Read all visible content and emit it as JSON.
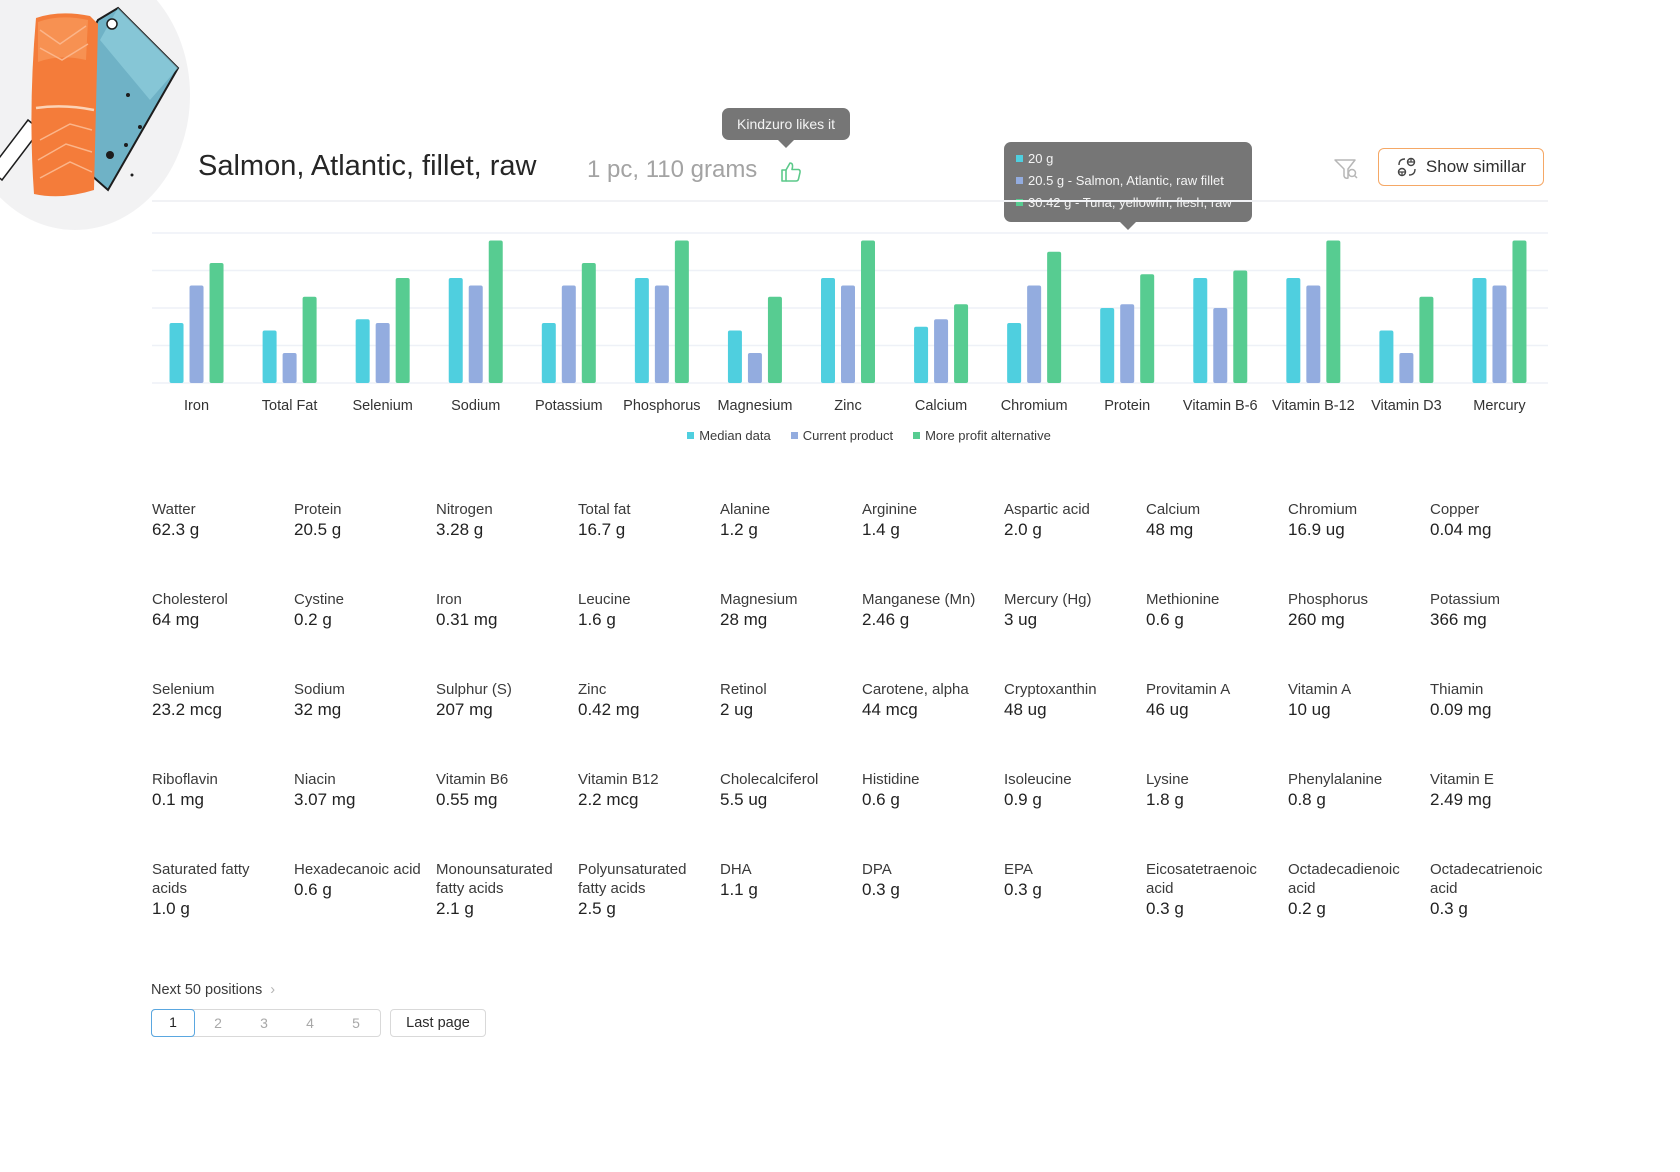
{
  "product": {
    "title": "Salmon, Atlantic, fillet, raw",
    "portion": "1 pc, 110 grams",
    "like_tooltip": "Kindzuro likes it",
    "like_icon": "thumbs-up-icon",
    "image_icon": "salmon-fillet-illustration"
  },
  "toolbar": {
    "filter_icon": "filter-search-icon",
    "show_similar_label": "Show simillar",
    "show_similar_icon": "similar-items-icon"
  },
  "colors": {
    "median": "#4fcfdf",
    "current": "#93acdf",
    "alternative": "#57cc91",
    "accent_orange": "#f5a866",
    "like_green": "#5cc98a"
  },
  "chart_tooltip": {
    "rows": [
      {
        "text": "20 g",
        "series": "median"
      },
      {
        "text": "20.5 g - Salmon, Atlantic, raw fillet",
        "series": "current"
      },
      {
        "text": "30.42 g - Tuna, yellowfin, flesh, raw",
        "series": "alternative"
      }
    ]
  },
  "chart_data": {
    "type": "bar",
    "title": "",
    "xlabel": "",
    "ylabel": "",
    "ylim": [
      0,
      4
    ],
    "grid": true,
    "legend_position": "bottom-center",
    "categories": [
      "Iron",
      "Total Fat",
      "Selenium",
      "Sodium",
      "Potassium",
      "Phosphorus",
      "Magnesium",
      "Zinc",
      "Calcium",
      "Chromium",
      "Protein",
      "Vitamin B-6",
      "Vitamin B-12",
      "Vitamin D3",
      "Mercury"
    ],
    "series": [
      {
        "name": "Median data",
        "key": "median",
        "values": [
          1.6,
          1.4,
          1.7,
          2.8,
          1.6,
          2.8,
          1.4,
          2.8,
          1.5,
          1.6,
          2.0,
          2.8,
          2.8,
          1.4,
          2.8
        ]
      },
      {
        "name": "Current product",
        "key": "current",
        "values": [
          2.6,
          0.8,
          1.6,
          2.6,
          2.6,
          2.6,
          0.8,
          2.6,
          1.7,
          2.6,
          2.1,
          2.0,
          2.6,
          0.8,
          2.6
        ]
      },
      {
        "name": "More profit alternative",
        "key": "alternative",
        "values": [
          3.2,
          2.3,
          2.8,
          3.8,
          3.2,
          3.8,
          2.3,
          3.8,
          2.1,
          3.5,
          2.9,
          3.0,
          3.8,
          2.3,
          3.8
        ]
      }
    ]
  },
  "nutrients": [
    {
      "label": "Watter",
      "value": "62.3 g"
    },
    {
      "label": "Protein",
      "value": "20.5 g"
    },
    {
      "label": "Nitrogen",
      "value": "3.28 g"
    },
    {
      "label": "Total fat",
      "value": "16.7 g"
    },
    {
      "label": "Alanine",
      "value": "1.2 g"
    },
    {
      "label": "Arginine",
      "value": "1.4 g"
    },
    {
      "label": "Aspartic acid",
      "value": "2.0 g"
    },
    {
      "label": "Calcium",
      "value": "48 mg"
    },
    {
      "label": "Chromium",
      "value": "16.9 ug"
    },
    {
      "label": "Copper",
      "value": "0.04 mg"
    },
    {
      "label": "Cholesterol",
      "value": "64 mg"
    },
    {
      "label": "Cystine",
      "value": "0.2 g"
    },
    {
      "label": "Iron",
      "value": "0.31 mg"
    },
    {
      "label": "Leucine",
      "value": "1.6 g"
    },
    {
      "label": "Magnesium",
      "value": "28 mg"
    },
    {
      "label": "Manganese (Mn)",
      "value": "2.46 g"
    },
    {
      "label": "Mercury (Hg)",
      "value": "3 ug"
    },
    {
      "label": "Methionine",
      "value": "0.6 g"
    },
    {
      "label": "Phosphorus",
      "value": "260 mg"
    },
    {
      "label": "Potassium",
      "value": "366 mg"
    },
    {
      "label": "Selenium",
      "value": "23.2 mcg"
    },
    {
      "label": "Sodium",
      "value": "32 mg"
    },
    {
      "label": "Sulphur (S)",
      "value": "207 mg"
    },
    {
      "label": "Zinc",
      "value": "0.42 mg"
    },
    {
      "label": "Retinol",
      "value": "2 ug"
    },
    {
      "label": "Carotene, alpha",
      "value": "44 mcg"
    },
    {
      "label": "Cryptoxanthin",
      "value": "48 ug"
    },
    {
      "label": "Provitamin A",
      "value": "46 ug"
    },
    {
      "label": "Vitamin A",
      "value": "10 ug"
    },
    {
      "label": "Thiamin",
      "value": "0.09 mg"
    },
    {
      "label": "Riboflavin",
      "value": "0.1 mg"
    },
    {
      "label": "Niacin",
      "value": "3.07 mg"
    },
    {
      "label": "Vitamin B6",
      "value": "0.55 mg"
    },
    {
      "label": "Vitamin B12",
      "value": "2.2 mcg"
    },
    {
      "label": "Cholecalciferol",
      "value": "5.5 ug"
    },
    {
      "label": "Histidine",
      "value": "0.6 g"
    },
    {
      "label": "Isoleucine",
      "value": "0.9 g"
    },
    {
      "label": "Lysine",
      "value": "1.8 g"
    },
    {
      "label": "Phenylalanine",
      "value": "0.8 g"
    },
    {
      "label": "Vitamin E",
      "value": "2.49 mg"
    },
    {
      "label": "Saturated fatty acids",
      "value": "1.0 g"
    },
    {
      "label": "Hexadecanoic acid",
      "value": "0.6 g"
    },
    {
      "label": "Monounsaturated fatty acids",
      "value": "2.1 g"
    },
    {
      "label": "Polyunsaturated fatty acids",
      "value": "2.5 g"
    },
    {
      "label": "DHA",
      "value": "1.1 g"
    },
    {
      "label": "DPA",
      "value": "0.3 g"
    },
    {
      "label": "EPA",
      "value": "0.3 g"
    },
    {
      "label": "Eicosatetraenoic acid",
      "value": "0.3 g"
    },
    {
      "label": "Octadecadienoic acid",
      "value": "0.2 g"
    },
    {
      "label": "Octadecatrienoic acid",
      "value": "0.3 g"
    }
  ],
  "pagination": {
    "next_label": "Next 50 positions",
    "next_icon": "chevron-right-icon",
    "pages": [
      "1",
      "2",
      "3",
      "4",
      "5"
    ],
    "current_page": "1",
    "last_page_label": "Last page"
  }
}
